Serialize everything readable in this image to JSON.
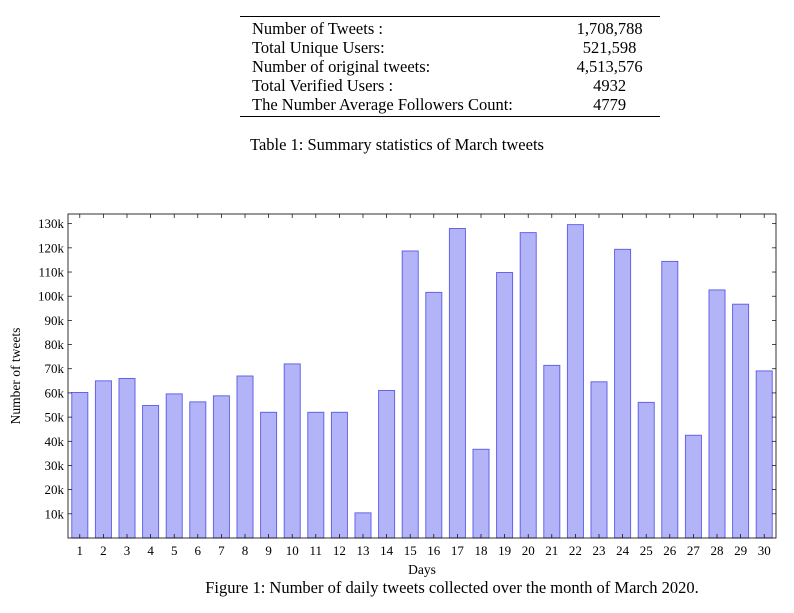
{
  "summary_table": {
    "rows": [
      {
        "label": "Number of Tweets :",
        "value": "1,708,788"
      },
      {
        "label": "Total Unique Users:",
        "value": "521,598"
      },
      {
        "label": "Number of original tweets:",
        "value": "4,513,576"
      },
      {
        "label": "Total Verified Users :",
        "value": "4932"
      },
      {
        "label": "The Number Average Followers Count:",
        "value": "4779"
      }
    ],
    "caption": "Table 1: Summary statistics of March tweets"
  },
  "figure": {
    "caption": "Figure 1: Number of daily tweets collected over the month of March 2020."
  },
  "chart_data": {
    "type": "bar",
    "xlabel": "Days",
    "ylabel": "Number of tweets",
    "categories": [
      "1",
      "2",
      "3",
      "4",
      "5",
      "6",
      "7",
      "8",
      "9",
      "10",
      "11",
      "12",
      "13",
      "14",
      "15",
      "16",
      "17",
      "18",
      "19",
      "20",
      "21",
      "22",
      "23",
      "24",
      "25",
      "26",
      "27",
      "28",
      "29",
      "30"
    ],
    "values": [
      60200,
      65000,
      66000,
      54800,
      59600,
      56300,
      58800,
      67000,
      52000,
      72000,
      52000,
      52000,
      10400,
      61000,
      118700,
      101600,
      128000,
      36700,
      109800,
      126300,
      71400,
      129600,
      64600,
      119400,
      56100,
      114400,
      42500,
      102600,
      96700,
      69100
    ],
    "ylim": [
      0,
      134000
    ],
    "yticks": [
      10000,
      20000,
      30000,
      40000,
      50000,
      60000,
      70000,
      80000,
      90000,
      100000,
      110000,
      120000,
      130000
    ],
    "ytick_labels": [
      "10k",
      "20k",
      "30k",
      "40k",
      "50k",
      "60k",
      "70k",
      "80k",
      "90k",
      "100k",
      "110k",
      "120k",
      "130k"
    ],
    "bar_fill": "#b3b3f7",
    "bar_stroke": "#5a5ae8",
    "grid": false
  }
}
